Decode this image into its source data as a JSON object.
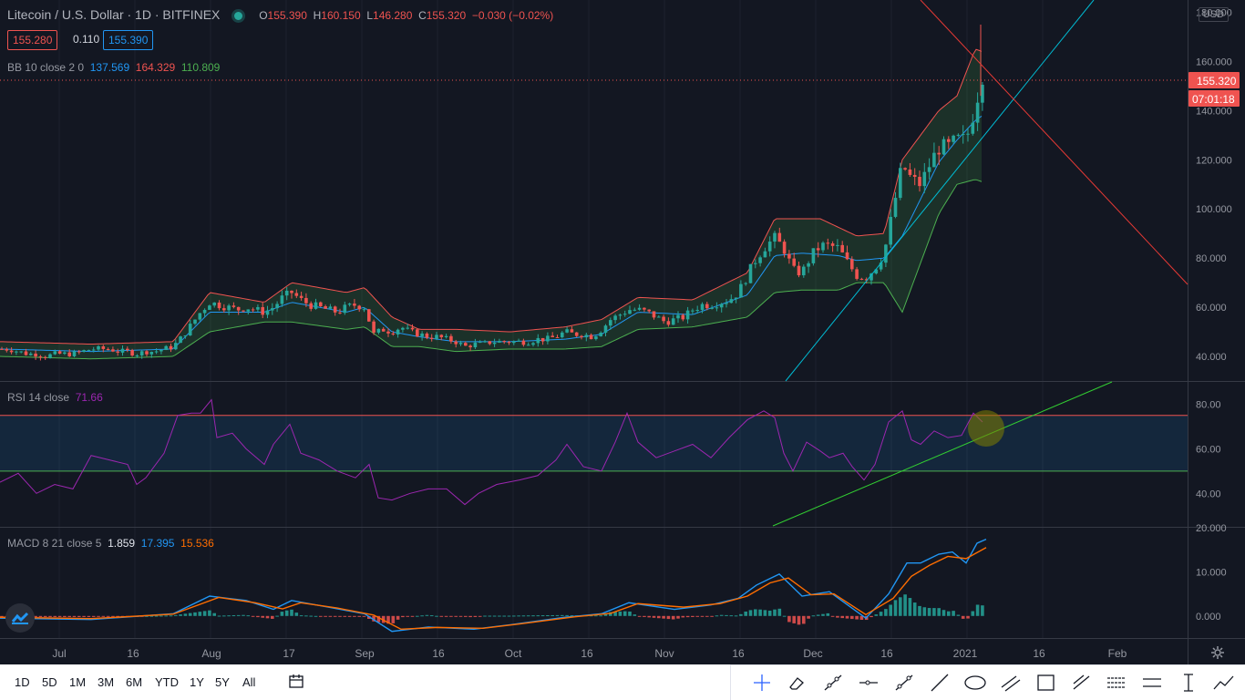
{
  "header": {
    "symbol": "Litecoin / U.S. Dollar · 1D · BITFINEX",
    "o_label": "O",
    "o": "155.390",
    "h_label": "H",
    "h": "160.150",
    "l_label": "L",
    "l": "146.280",
    "c_label": "C",
    "c": "155.320",
    "change": "−0.030 (−0.02%)",
    "bid": "155.280",
    "spread": "0.110",
    "ask": "155.390",
    "currency": "USD"
  },
  "indicators": {
    "bb": {
      "name": "BB 10 close 2 0",
      "basis": "137.569",
      "upper": "164.329",
      "lower": "110.809"
    },
    "rsi": {
      "name": "RSI 14 close",
      "value": "71.66"
    },
    "macd": {
      "name": "MACD 8 21 close 5",
      "hist": "1.859",
      "macd": "17.395",
      "signal": "15.536"
    }
  },
  "price_axis": {
    "ticks": [
      "180.000",
      "160.000",
      "140.000",
      "120.000",
      "100.000",
      "80.000",
      "60.000",
      "40.000"
    ],
    "last_price_label": "155.320",
    "countdown_label": "07:01:18"
  },
  "rsi_axis": {
    "ticks": [
      "80.00",
      "60.00",
      "40.00"
    ]
  },
  "macd_axis": {
    "ticks": [
      "20.000",
      "10.000",
      "0.000"
    ]
  },
  "time_axis": {
    "ticks": [
      "Jul",
      "16",
      "Aug",
      "17",
      "Sep",
      "16",
      "Oct",
      "16",
      "Nov",
      "16",
      "Dec",
      "16",
      "2021",
      "16",
      "Feb"
    ]
  },
  "timeframes": [
    "1D",
    "5D",
    "1M",
    "3M",
    "6M",
    "YTD",
    "1Y",
    "5Y",
    "All"
  ],
  "tools": [
    "crosshair-icon",
    "eraser-icon",
    "trend-line-icon",
    "horizontal-ray-icon",
    "trend-angle-icon",
    "ray-icon",
    "ellipse-icon",
    "parallel-channel-icon",
    "rectangle-icon",
    "fib-icon",
    "pitchfork-icon",
    "gann-icon",
    "measure-icon",
    "path-icon"
  ],
  "colors": {
    "bg": "#131722",
    "up": "#26a69a",
    "down": "#ef5350",
    "bb_upper": "#ef5350",
    "bb_lower": "#4caf50",
    "bb_basis": "#2196f3",
    "rsi_line": "#9c27b0",
    "macd_line": "#2196f3",
    "signal_line": "#ff6d00",
    "trendline_cyan": "#00bcd4",
    "trendline_red": "#e53935",
    "trendline_green": "#32cd32"
  },
  "chart_data": {
    "type": "candlestick",
    "price_range": [
      30,
      185
    ],
    "rsi_range": [
      25,
      90
    ],
    "macd_range": [
      -5,
      20
    ],
    "close_trajectory": [
      [
        0,
        43
      ],
      [
        10,
        43
      ],
      [
        20,
        42
      ],
      [
        30,
        41
      ],
      [
        40,
        41
      ],
      [
        50,
        40
      ],
      [
        60,
        41
      ],
      [
        70,
        41
      ],
      [
        80,
        41
      ],
      [
        90,
        42
      ],
      [
        100,
        43
      ],
      [
        110,
        43
      ],
      [
        120,
        43
      ],
      [
        130,
        42
      ],
      [
        140,
        42
      ],
      [
        150,
        41
      ],
      [
        160,
        42
      ],
      [
        170,
        42
      ],
      [
        180,
        43
      ],
      [
        190,
        44
      ],
      [
        200,
        48
      ],
      [
        210,
        53
      ],
      [
        220,
        58
      ],
      [
        230,
        62
      ],
      [
        240,
        61
      ],
      [
        250,
        60
      ],
      [
        260,
        59
      ],
      [
        270,
        60
      ],
      [
        280,
        59
      ],
      [
        290,
        58
      ],
      [
        300,
        60
      ],
      [
        310,
        64
      ],
      [
        320,
        66
      ],
      [
        330,
        63
      ],
      [
        340,
        61
      ],
      [
        350,
        60
      ],
      [
        360,
        59
      ],
      [
        370,
        58
      ],
      [
        380,
        60
      ],
      [
        390,
        61
      ],
      [
        400,
        60
      ],
      [
        410,
        49
      ],
      [
        420,
        51
      ],
      [
        430,
        50
      ],
      [
        440,
        52
      ],
      [
        450,
        50
      ],
      [
        460,
        49
      ],
      [
        470,
        48
      ],
      [
        480,
        48
      ],
      [
        490,
        47
      ],
      [
        500,
        46
      ],
      [
        510,
        44
      ],
      [
        520,
        45
      ],
      [
        530,
        45
      ],
      [
        540,
        46
      ],
      [
        550,
        46
      ],
      [
        560,
        46
      ],
      [
        570,
        46
      ],
      [
        580,
        46
      ],
      [
        590,
        47
      ],
      [
        600,
        47
      ],
      [
        610,
        48
      ],
      [
        620,
        50
      ],
      [
        630,
        49
      ],
      [
        640,
        49
      ],
      [
        650,
        48
      ],
      [
        660,
        51
      ],
      [
        670,
        55
      ],
      [
        680,
        57
      ],
      [
        690,
        59
      ],
      [
        700,
        59
      ],
      [
        710,
        58
      ],
      [
        720,
        56
      ],
      [
        730,
        54
      ],
      [
        740,
        55
      ],
      [
        750,
        56
      ],
      [
        760,
        59
      ],
      [
        770,
        61
      ],
      [
        780,
        61
      ],
      [
        790,
        62
      ],
      [
        800,
        63
      ],
      [
        810,
        66
      ],
      [
        820,
        73
      ],
      [
        830,
        80
      ],
      [
        840,
        85
      ],
      [
        850,
        88
      ],
      [
        860,
        84
      ],
      [
        870,
        75
      ],
      [
        880,
        74
      ],
      [
        890,
        81
      ],
      [
        900,
        85
      ],
      [
        910,
        85
      ],
      [
        920,
        84
      ],
      [
        930,
        78
      ],
      [
        940,
        73
      ],
      [
        950,
        72
      ],
      [
        960,
        76
      ],
      [
        970,
        82
      ],
      [
        980,
        100
      ],
      [
        990,
        118
      ],
      [
        1000,
        112
      ],
      [
        1010,
        110
      ],
      [
        1020,
        118
      ],
      [
        1030,
        125
      ],
      [
        1040,
        125
      ],
      [
        1050,
        128
      ],
      [
        1060,
        128
      ],
      [
        1070,
        142
      ],
      [
        1078,
        155
      ]
    ],
    "bb_upper": [
      [
        0,
        46
      ],
      [
        100,
        45
      ],
      [
        190,
        46
      ],
      [
        230,
        66
      ],
      [
        290,
        62
      ],
      [
        320,
        70
      ],
      [
        380,
        66
      ],
      [
        400,
        68
      ],
      [
        430,
        56
      ],
      [
        460,
        51
      ],
      [
        500,
        51
      ],
      [
        560,
        50
      ],
      [
        620,
        52
      ],
      [
        660,
        55
      ],
      [
        700,
        64
      ],
      [
        760,
        63
      ],
      [
        820,
        74
      ],
      [
        850,
        96
      ],
      [
        900,
        96
      ],
      [
        940,
        89
      ],
      [
        970,
        90
      ],
      [
        990,
        120
      ],
      [
        1030,
        140
      ],
      [
        1050,
        146
      ],
      [
        1070,
        165
      ],
      [
        1078,
        164
      ]
    ],
    "bb_lower": [
      [
        0,
        40
      ],
      [
        100,
        39
      ],
      [
        190,
        40
      ],
      [
        230,
        50
      ],
      [
        290,
        54
      ],
      [
        320,
        54
      ],
      [
        380,
        51
      ],
      [
        400,
        52
      ],
      [
        430,
        44
      ],
      [
        460,
        44
      ],
      [
        500,
        42
      ],
      [
        560,
        43
      ],
      [
        620,
        43
      ],
      [
        660,
        44
      ],
      [
        700,
        51
      ],
      [
        760,
        52
      ],
      [
        820,
        56
      ],
      [
        850,
        66
      ],
      [
        880,
        67
      ],
      [
        920,
        67
      ],
      [
        940,
        70
      ],
      [
        970,
        70
      ],
      [
        990,
        58
      ],
      [
        1030,
        98
      ],
      [
        1050,
        110
      ],
      [
        1070,
        112
      ],
      [
        1078,
        111
      ]
    ],
    "bb_basis": [
      [
        0,
        43
      ],
      [
        100,
        42
      ],
      [
        190,
        43
      ],
      [
        230,
        58
      ],
      [
        290,
        58
      ],
      [
        320,
        62
      ],
      [
        380,
        58
      ],
      [
        400,
        60
      ],
      [
        430,
        50
      ],
      [
        460,
        48
      ],
      [
        500,
        46
      ],
      [
        560,
        46
      ],
      [
        620,
        47
      ],
      [
        660,
        49
      ],
      [
        700,
        58
      ],
      [
        760,
        57
      ],
      [
        820,
        65
      ],
      [
        850,
        81
      ],
      [
        880,
        82
      ],
      [
        920,
        81
      ],
      [
        940,
        79
      ],
      [
        970,
        80
      ],
      [
        990,
        89
      ],
      [
        1030,
        119
      ],
      [
        1050,
        128
      ],
      [
        1070,
        136
      ],
      [
        1078,
        138
      ]
    ],
    "rsi_points": [
      [
        0,
        45
      ],
      [
        20,
        49
      ],
      [
        40,
        40
      ],
      [
        60,
        44
      ],
      [
        80,
        42
      ],
      [
        100,
        57
      ],
      [
        120,
        55
      ],
      [
        140,
        53
      ],
      [
        150,
        44
      ],
      [
        160,
        47
      ],
      [
        180,
        58
      ],
      [
        195,
        75
      ],
      [
        210,
        76
      ],
      [
        220,
        76
      ],
      [
        232,
        82
      ],
      [
        238,
        65
      ],
      [
        255,
        67
      ],
      [
        270,
        60
      ],
      [
        290,
        53
      ],
      [
        300,
        62
      ],
      [
        318,
        71
      ],
      [
        330,
        58
      ],
      [
        350,
        55
      ],
      [
        370,
        50
      ],
      [
        390,
        47
      ],
      [
        405,
        53
      ],
      [
        415,
        38
      ],
      [
        430,
        37
      ],
      [
        450,
        40
      ],
      [
        470,
        42
      ],
      [
        490,
        42
      ],
      [
        510,
        35
      ],
      [
        525,
        40
      ],
      [
        545,
        44
      ],
      [
        570,
        46
      ],
      [
        590,
        48
      ],
      [
        610,
        55
      ],
      [
        622,
        62
      ],
      [
        640,
        52
      ],
      [
        660,
        50
      ],
      [
        675,
        63
      ],
      [
        688,
        76
      ],
      [
        700,
        63
      ],
      [
        720,
        56
      ],
      [
        740,
        59
      ],
      [
        760,
        62
      ],
      [
        780,
        56
      ],
      [
        800,
        65
      ],
      [
        820,
        73
      ],
      [
        838,
        77
      ],
      [
        850,
        74
      ],
      [
        860,
        58
      ],
      [
        870,
        50
      ],
      [
        885,
        63
      ],
      [
        900,
        59
      ],
      [
        910,
        56
      ],
      [
        925,
        58
      ],
      [
        935,
        52
      ],
      [
        948,
        46
      ],
      [
        960,
        53
      ],
      [
        975,
        72
      ],
      [
        990,
        77
      ],
      [
        1000,
        64
      ],
      [
        1010,
        62
      ],
      [
        1025,
        68
      ],
      [
        1040,
        65
      ],
      [
        1055,
        66
      ],
      [
        1068,
        76
      ],
      [
        1078,
        72
      ]
    ],
    "macd_points": [
      [
        0,
        -0.5
      ],
      [
        100,
        -0.8
      ],
      [
        190,
        0.5
      ],
      [
        230,
        4.5
      ],
      [
        270,
        3.5
      ],
      [
        300,
        1.5
      ],
      [
        320,
        3.5
      ],
      [
        360,
        2
      ],
      [
        400,
        0.5
      ],
      [
        430,
        -3.5
      ],
      [
        470,
        -2.5
      ],
      [
        520,
        -3
      ],
      [
        560,
        -2
      ],
      [
        620,
        -0.3
      ],
      [
        660,
        0.5
      ],
      [
        690,
        3
      ],
      [
        740,
        1.5
      ],
      [
        780,
        2.5
      ],
      [
        810,
        4
      ],
      [
        830,
        7
      ],
      [
        855,
        9.5
      ],
      [
        880,
        4.5
      ],
      [
        910,
        5.5
      ],
      [
        950,
        -0.5
      ],
      [
        975,
        5
      ],
      [
        995,
        12
      ],
      [
        1010,
        12
      ],
      [
        1030,
        14
      ],
      [
        1045,
        14.5
      ],
      [
        1060,
        12
      ],
      [
        1072,
        16.5
      ],
      [
        1082,
        17.4
      ]
    ],
    "signal_points": [
      [
        0,
        -0.3
      ],
      [
        100,
        -0.6
      ],
      [
        190,
        0.4
      ],
      [
        240,
        4.2
      ],
      [
        280,
        3
      ],
      [
        310,
        1.6
      ],
      [
        330,
        3
      ],
      [
        370,
        1.8
      ],
      [
        410,
        0.2
      ],
      [
        440,
        -3
      ],
      [
        480,
        -2.6
      ],
      [
        530,
        -2.8
      ],
      [
        570,
        -1.8
      ],
      [
        630,
        -0.2
      ],
      [
        670,
        0.6
      ],
      [
        700,
        2.8
      ],
      [
        750,
        2
      ],
      [
        790,
        2.8
      ],
      [
        820,
        4.5
      ],
      [
        845,
        7.5
      ],
      [
        865,
        8.6
      ],
      [
        890,
        4.8
      ],
      [
        915,
        5
      ],
      [
        950,
        0.3
      ],
      [
        980,
        4
      ],
      [
        1000,
        9
      ],
      [
        1020,
        11.5
      ],
      [
        1040,
        13.5
      ],
      [
        1060,
        13
      ],
      [
        1082,
        15.5
      ]
    ]
  }
}
